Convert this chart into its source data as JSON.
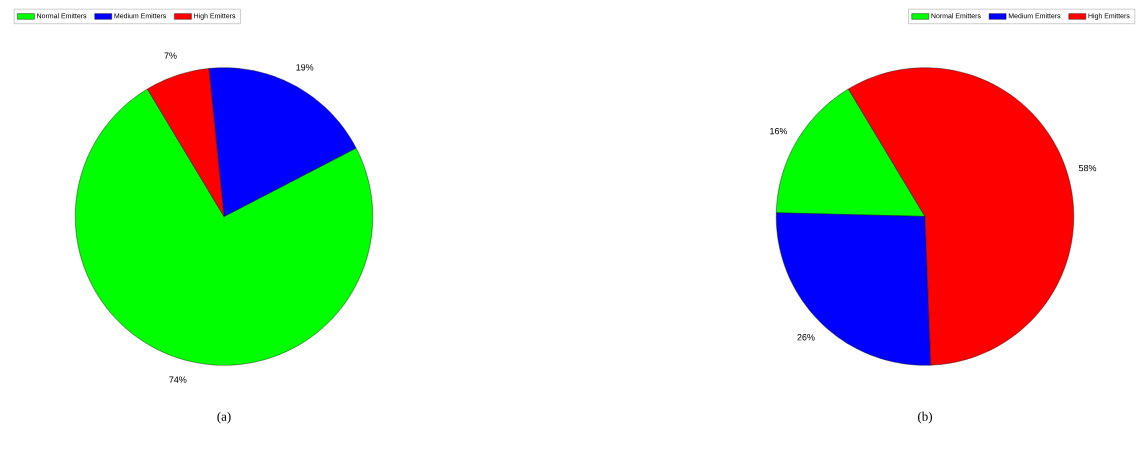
{
  "chart_data": [
    {
      "type": "pie",
      "categories": [
        "Normal Emitters",
        "Medium Emitters",
        "High Emitters"
      ],
      "values": [
        74,
        19,
        7
      ],
      "colors": [
        "#00ff00",
        "#0000ff",
        "#ff0000"
      ],
      "value_labels": [
        "74%",
        "19%",
        "7%"
      ],
      "legend": "top left",
      "annotations": [
        "(a)"
      ]
    },
    {
      "type": "pie",
      "categories": [
        "Normal Emitters",
        "Medium Emitters",
        "High Emitters"
      ],
      "values": [
        16,
        26,
        58
      ],
      "colors": [
        "#00ff00",
        "#0000ff",
        "#ff0000"
      ],
      "value_labels": [
        "16%",
        "26%",
        "58%"
      ],
      "legend": "top right",
      "annotations": [
        "(b)"
      ]
    }
  ]
}
